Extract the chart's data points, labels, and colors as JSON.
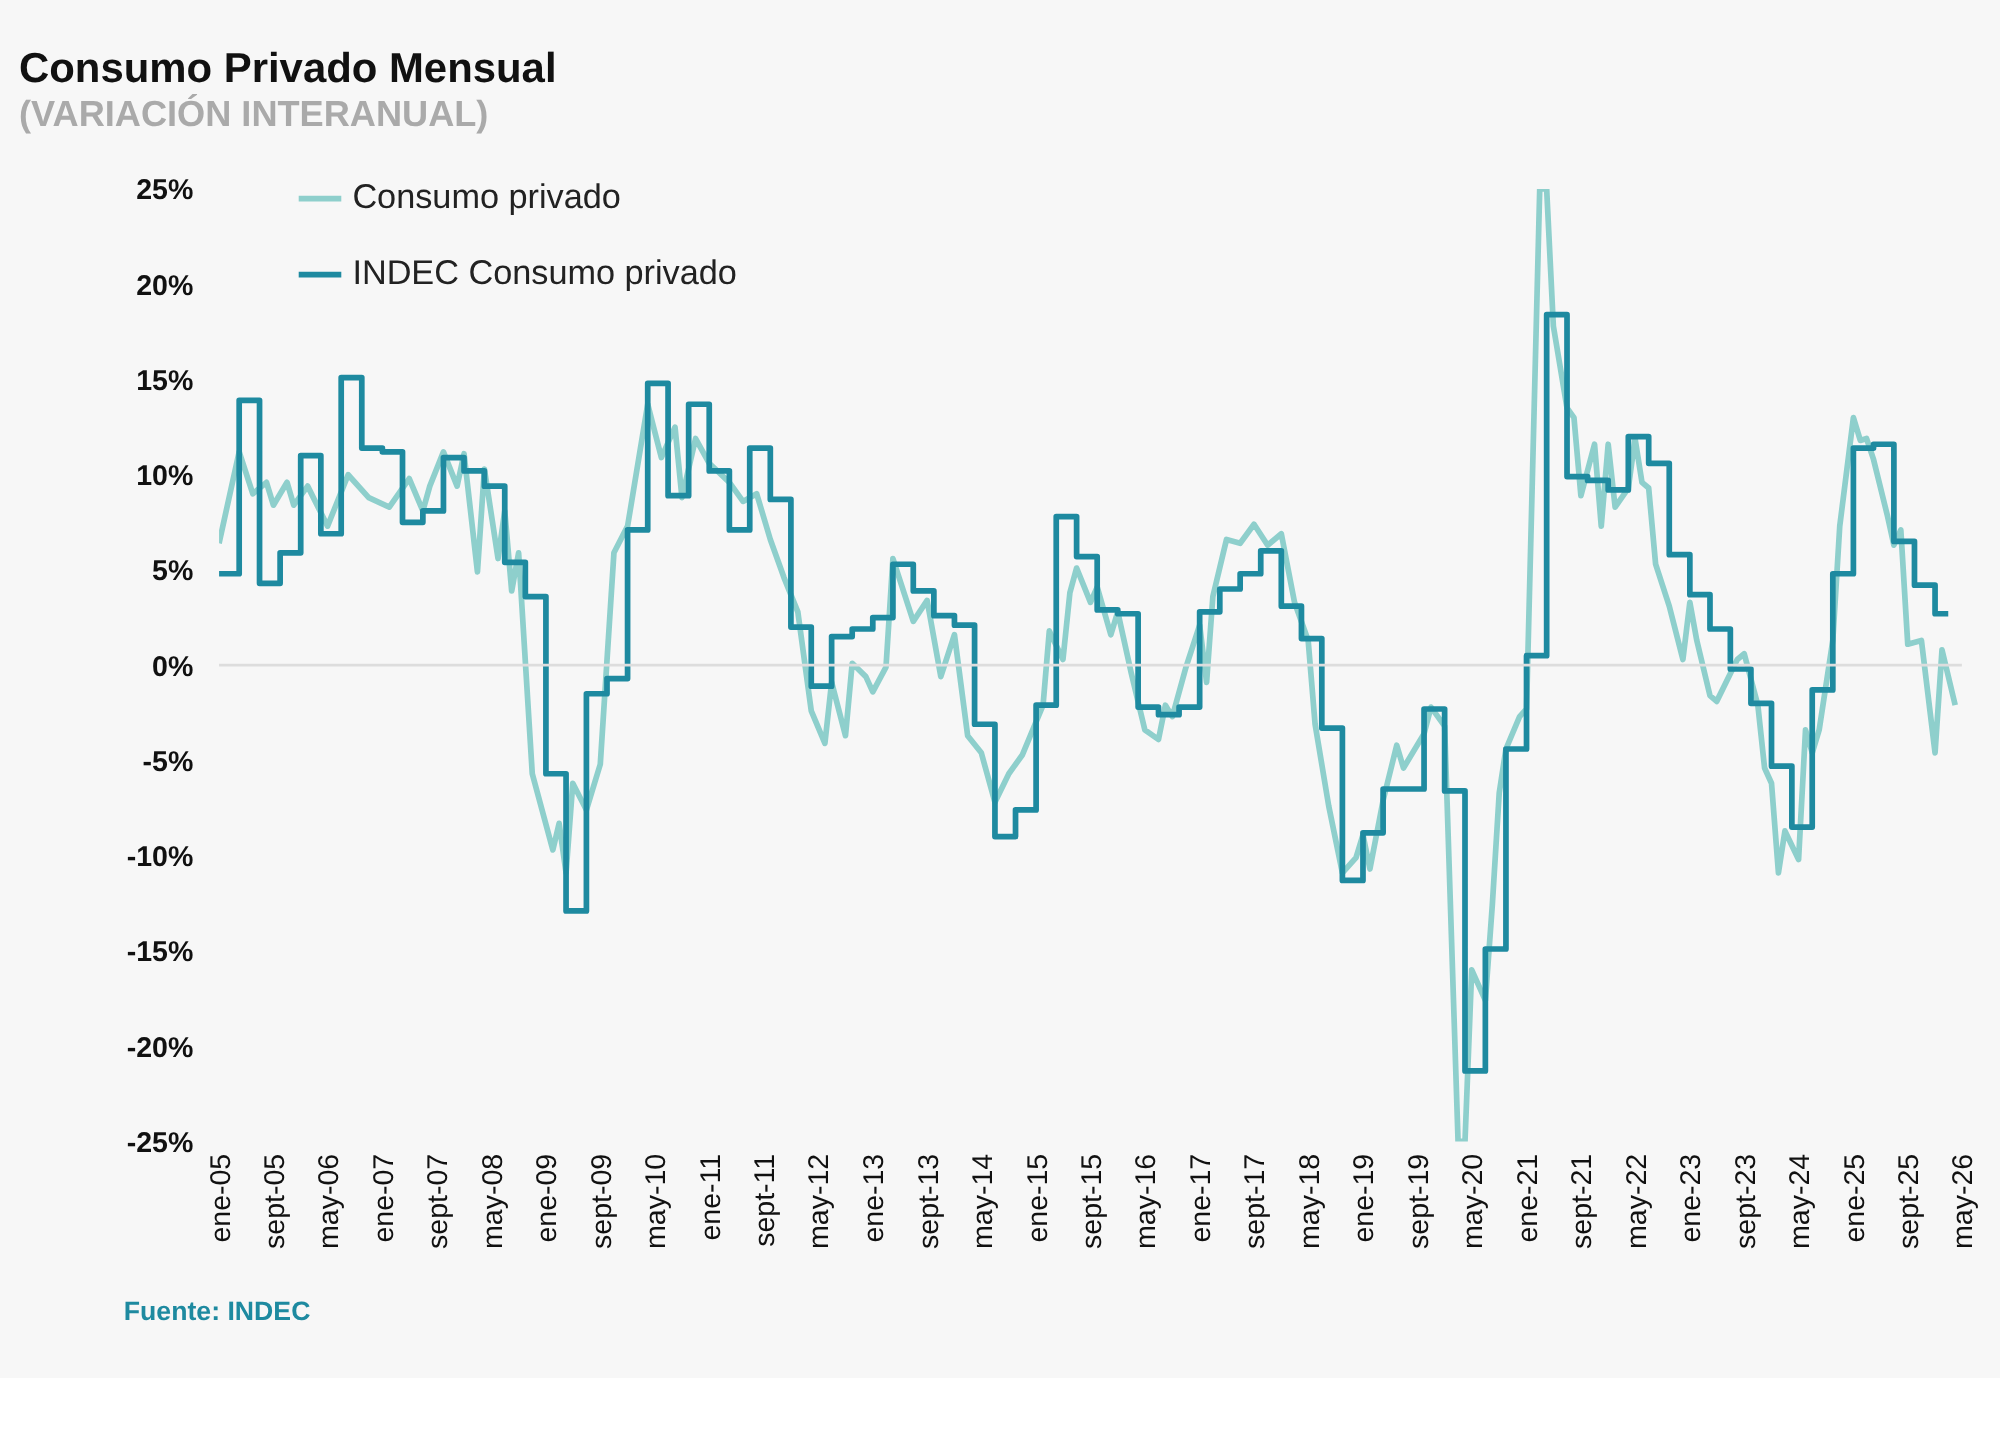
{
  "chart_data": {
    "type": "line",
    "title": "Consumo Privado Mensual",
    "subtitle": "(VARIACIÓN INTERANUAL)",
    "annotations": [
      "Fuente: INDEC"
    ],
    "ylim": [
      -25,
      25
    ],
    "yticks": [
      {
        "value": -25,
        "label": "-25%"
      },
      {
        "value": -20,
        "label": "-20%"
      },
      {
        "value": -15,
        "label": "-15%"
      },
      {
        "value": -10,
        "label": "-10%"
      },
      {
        "value": -5,
        "label": "-5%"
      },
      {
        "value": 0,
        "label": "0%"
      },
      {
        "value": 5,
        "label": "5%"
      },
      {
        "value": 10,
        "label": "10%"
      },
      {
        "value": 15,
        "label": "15%"
      },
      {
        "value": 20,
        "label": "20%"
      },
      {
        "value": 25,
        "label": "25%"
      }
    ],
    "xlim": [
      "2005-01",
      "2026-05"
    ],
    "xticks": [
      {
        "value": "2005-01",
        "label": "ene-05"
      },
      {
        "value": "2005-09",
        "label": "sept-05"
      },
      {
        "value": "2006-05",
        "label": "may-06"
      },
      {
        "value": "2007-01",
        "label": "ene-07"
      },
      {
        "value": "2007-09",
        "label": "sept-07"
      },
      {
        "value": "2008-05",
        "label": "may-08"
      },
      {
        "value": "2009-01",
        "label": "ene-09"
      },
      {
        "value": "2009-09",
        "label": "sept-09"
      },
      {
        "value": "2010-05",
        "label": "may-10"
      },
      {
        "value": "2011-01",
        "label": "ene-11"
      },
      {
        "value": "2011-09",
        "label": "sept-11"
      },
      {
        "value": "2012-05",
        "label": "may-12"
      },
      {
        "value": "2013-01",
        "label": "ene-13"
      },
      {
        "value": "2013-09",
        "label": "sept-13"
      },
      {
        "value": "2014-05",
        "label": "may-14"
      },
      {
        "value": "2015-01",
        "label": "ene-15"
      },
      {
        "value": "2015-09",
        "label": "sept-15"
      },
      {
        "value": "2016-05",
        "label": "may-16"
      },
      {
        "value": "2017-01",
        "label": "ene-17"
      },
      {
        "value": "2017-09",
        "label": "sept-17"
      },
      {
        "value": "2018-05",
        "label": "may-18"
      },
      {
        "value": "2019-01",
        "label": "ene-19"
      },
      {
        "value": "2019-09",
        "label": "sept-19"
      },
      {
        "value": "2020-05",
        "label": "may-20"
      },
      {
        "value": "2021-01",
        "label": "ene-21"
      },
      {
        "value": "2021-09",
        "label": "sept-21"
      },
      {
        "value": "2022-05",
        "label": "may-22"
      },
      {
        "value": "2023-01",
        "label": "ene-23"
      },
      {
        "value": "2023-09",
        "label": "sept-23"
      },
      {
        "value": "2024-05",
        "label": "may-24"
      },
      {
        "value": "2025-01",
        "label": "ene-25"
      },
      {
        "value": "2025-09",
        "label": "sept-25"
      },
      {
        "value": "2026-05",
        "label": "may-26"
      }
    ],
    "grid": false,
    "legend": "top left",
    "line_style": "solid",
    "ref_lines": [
      {
        "axis": "y",
        "value": 0,
        "color": "#dddddd"
      }
    ],
    "series": [
      {
        "name": "Consumo privado",
        "type": "line",
        "color": "#8ecfcc",
        "x": [
          "2005-01",
          "2005-04",
          "2005-06",
          "2005-08",
          "2005-09",
          "2005-11",
          "2005-12",
          "2006-02",
          "2006-05",
          "2006-08",
          "2006-11",
          "2007-02",
          "2007-05",
          "2007-07",
          "2007-08",
          "2007-10",
          "2007-12",
          "2008-01",
          "2008-03",
          "2008-04",
          "2008-06",
          "2008-07",
          "2008-08",
          "2008-09",
          "2008-11",
          "2009-02",
          "2009-03",
          "2009-04",
          "2009-05",
          "2009-07",
          "2009-09",
          "2009-11",
          "2010-01",
          "2010-04",
          "2010-06",
          "2010-08",
          "2010-09",
          "2010-11",
          "2011-01",
          "2011-04",
          "2011-06",
          "2011-08",
          "2011-10",
          "2011-12",
          "2012-02",
          "2012-04",
          "2012-06",
          "2012-07",
          "2012-09",
          "2012-10",
          "2012-12",
          "2013-01",
          "2013-03",
          "2013-04",
          "2013-07",
          "2013-09",
          "2013-11",
          "2014-01",
          "2014-03",
          "2014-05",
          "2014-07",
          "2014-09",
          "2014-11",
          "2015-02",
          "2015-03",
          "2015-05",
          "2015-06",
          "2015-07",
          "2015-09",
          "2015-10",
          "2015-12",
          "2016-01",
          "2016-03",
          "2016-05",
          "2016-07",
          "2016-08",
          "2016-09",
          "2016-11",
          "2017-01",
          "2017-02",
          "2017-03",
          "2017-05",
          "2017-07",
          "2017-09",
          "2017-11",
          "2018-01",
          "2018-03",
          "2018-05",
          "2018-06",
          "2018-08",
          "2018-10",
          "2018-12",
          "2019-01",
          "2019-02",
          "2019-04",
          "2019-06",
          "2019-07",
          "2019-10",
          "2019-11",
          "2020-01",
          "2020-03",
          "2020-04",
          "2020-05",
          "2020-07",
          "2020-08",
          "2020-09",
          "2020-10",
          "2020-12",
          "2021-01",
          "2021-03",
          "2021-04",
          "2021-05",
          "2021-07",
          "2021-08",
          "2021-09",
          "2021-11",
          "2021-12",
          "2022-01",
          "2022-02",
          "2022-04",
          "2022-05",
          "2022-06",
          "2022-07",
          "2022-08",
          "2022-10",
          "2022-12",
          "2023-01",
          "2023-02",
          "2023-04",
          "2023-05",
          "2023-08",
          "2023-09",
          "2023-11",
          "2023-12",
          "2024-01",
          "2024-02",
          "2024-03",
          "2024-05",
          "2024-06",
          "2024-07",
          "2024-08",
          "2024-10",
          "2024-11",
          "2025-01",
          "2025-02",
          "2025-03",
          "2025-04",
          "2025-06",
          "2025-07",
          "2025-08",
          "2025-09",
          "2025-11",
          "2026-01",
          "2026-02",
          "2026-04"
        ],
        "values": [
          6.4,
          11.2,
          9.0,
          9.6,
          8.4,
          9.6,
          8.4,
          9.4,
          7.3,
          10.0,
          8.8,
          8.3,
          9.8,
          8.1,
          9.4,
          11.2,
          9.4,
          11.1,
          4.9,
          10.3,
          5.6,
          8.1,
          3.9,
          5.9,
          -5.7,
          -9.7,
          -8.3,
          -10.9,
          -6.2,
          -7.6,
          -5.2,
          5.9,
          7.3,
          13.7,
          10.9,
          12.5,
          8.8,
          11.9,
          10.6,
          9.6,
          8.6,
          9.0,
          6.6,
          4.6,
          2.8,
          -2.4,
          -4.1,
          -0.9,
          -3.7,
          0.1,
          -0.6,
          -1.4,
          -0.1,
          5.6,
          2.3,
          3.4,
          -0.6,
          1.6,
          -3.7,
          -4.6,
          -7.2,
          -5.7,
          -4.7,
          -2.1,
          1.8,
          0.3,
          3.8,
          5.1,
          3.3,
          4.1,
          1.6,
          2.8,
          -0.4,
          -3.4,
          -3.9,
          -2.1,
          -2.7,
          -0.1,
          2.1,
          -0.9,
          3.6,
          6.6,
          6.4,
          7.4,
          6.3,
          6.9,
          3.3,
          1.3,
          -3.1,
          -7.4,
          -10.9,
          -10.1,
          -8.9,
          -10.7,
          -7.1,
          -4.2,
          -5.4,
          -3.6,
          -2.2,
          -3.2,
          -25,
          -25,
          -16.0,
          -17.6,
          -12.6,
          -6.7,
          -4.4,
          -2.7,
          -2.3,
          25,
          25,
          17.8,
          13.5,
          13.0,
          8.9,
          11.6,
          7.3,
          11.6,
          8.3,
          9.3,
          11.9,
          9.6,
          9.3,
          5.3,
          3.1,
          0.3,
          3.3,
          1.3,
          -1.6,
          -1.9,
          0.3,
          0.6,
          -2.1,
          -5.4,
          -6.2,
          -10.9,
          -8.7,
          -10.2,
          -3.4,
          -4.6,
          -3.4,
          1.3,
          7.3,
          13.0,
          11.8,
          11.9,
          10.8,
          7.9,
          6.3,
          7.1,
          1.1,
          1.3,
          -4.6,
          0.8,
          -2.1
        ]
      },
      {
        "name": "INDEC Consumo privado",
        "type": "step",
        "color": "#1e8aa0",
        "x": [
          "2005-01",
          "2005-04",
          "2005-07",
          "2005-10",
          "2006-01",
          "2006-04",
          "2006-07",
          "2006-10",
          "2007-01",
          "2007-04",
          "2007-07",
          "2007-10",
          "2008-01",
          "2008-04",
          "2008-07",
          "2008-10",
          "2009-01",
          "2009-04",
          "2009-07",
          "2009-10",
          "2010-01",
          "2010-04",
          "2010-07",
          "2010-10",
          "2011-01",
          "2011-04",
          "2011-07",
          "2011-10",
          "2012-01",
          "2012-04",
          "2012-07",
          "2012-10",
          "2013-01",
          "2013-04",
          "2013-07",
          "2013-10",
          "2014-01",
          "2014-04",
          "2014-07",
          "2014-10",
          "2015-01",
          "2015-04",
          "2015-07",
          "2015-10",
          "2016-01",
          "2016-04",
          "2016-07",
          "2016-10",
          "2017-01",
          "2017-04",
          "2017-07",
          "2017-10",
          "2018-01",
          "2018-04",
          "2018-07",
          "2018-10",
          "2019-01",
          "2019-04",
          "2019-07",
          "2019-10",
          "2020-01",
          "2020-04",
          "2020-07",
          "2020-10",
          "2021-01",
          "2021-04",
          "2021-07",
          "2021-10",
          "2022-01",
          "2022-04",
          "2022-07",
          "2022-10",
          "2023-01",
          "2023-04",
          "2023-07",
          "2023-10",
          "2024-01",
          "2024-04",
          "2024-07",
          "2024-10",
          "2025-01",
          "2025-04",
          "2025-07",
          "2025-10",
          "2026-01",
          "2026-03"
        ],
        "values": [
          4.8,
          13.9,
          4.3,
          5.9,
          11.0,
          6.9,
          15.1,
          11.4,
          11.2,
          7.5,
          8.1,
          10.9,
          10.2,
          9.4,
          5.4,
          3.6,
          -5.7,
          -12.9,
          -1.5,
          -0.7,
          7.1,
          14.8,
          8.9,
          13.7,
          10.2,
          7.1,
          11.4,
          8.7,
          2.0,
          -1.1,
          1.5,
          1.9,
          2.5,
          5.3,
          3.9,
          2.6,
          2.1,
          -3.1,
          -9.0,
          -7.6,
          -2.1,
          7.8,
          5.7,
          2.9,
          2.7,
          -2.2,
          -2.6,
          -2.2,
          2.8,
          4.0,
          4.8,
          6.0,
          3.1,
          1.4,
          -3.3,
          -11.3,
          -8.8,
          -6.5,
          -6.5,
          -2.3,
          -6.6,
          -21.3,
          -14.9,
          -4.4,
          0.5,
          18.4,
          9.9,
          9.7,
          9.2,
          12.0,
          10.6,
          5.8,
          3.7,
          1.9,
          -0.2,
          -2.0,
          -5.3,
          -8.5,
          -1.3,
          4.8,
          11.4,
          11.6,
          6.5,
          4.2,
          2.7,
          2.7
        ]
      }
    ]
  }
}
